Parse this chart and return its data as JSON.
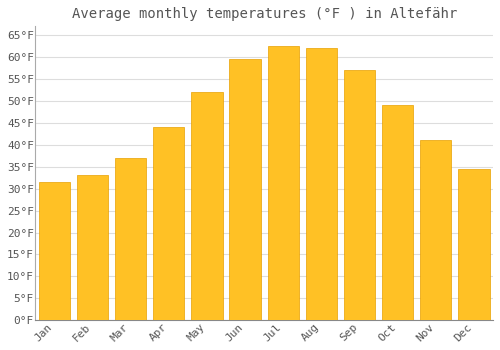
{
  "title": "Average monthly temperatures (°F ) in Altefähr",
  "months": [
    "Jan",
    "Feb",
    "Mar",
    "Apr",
    "May",
    "Jun",
    "Jul",
    "Aug",
    "Sep",
    "Oct",
    "Nov",
    "Dec"
  ],
  "values": [
    31.5,
    33.0,
    37.0,
    44.0,
    52.0,
    59.5,
    62.5,
    62.0,
    57.0,
    49.0,
    41.0,
    34.5
  ],
  "bar_color": "#FFC125",
  "bar_edge_color": "#E8A000",
  "background_color": "#FFFFFF",
  "grid_color": "#DDDDDD",
  "text_color": "#555555",
  "ylim": [
    0,
    67
  ],
  "yticks": [
    0,
    5,
    10,
    15,
    20,
    25,
    30,
    35,
    40,
    45,
    50,
    55,
    60,
    65
  ],
  "title_fontsize": 10,
  "tick_fontsize": 8,
  "bar_width": 0.82
}
